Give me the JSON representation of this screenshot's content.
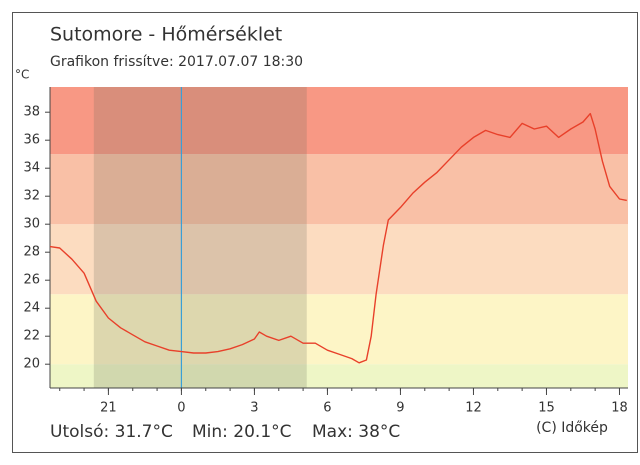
{
  "chart_data": {
    "type": "line",
    "title": "Sutomore - Hőmérséklet",
    "subtitle": "Grafikon frissítve: 2017.07.07 18:30",
    "y_unit": "°C",
    "stats": [
      "Utolsó: 31.7°C",
      "Min: 20.1°C",
      "Max: 38°C"
    ],
    "credit": "(C) Időkép",
    "color": "#e8402a",
    "x": [
      -5.4,
      -5,
      -4.5,
      -4,
      -3.5,
      -3,
      -2.5,
      -2,
      -1.5,
      -1,
      -0.5,
      0,
      0.5,
      1,
      1.5,
      2,
      2.5,
      3,
      3.2,
      3.5,
      4,
      4.5,
      5,
      5.5,
      6,
      6.5,
      7,
      7.3,
      7.6,
      7.8,
      8,
      8.3,
      8.5,
      9,
      9.5,
      10,
      10.5,
      11,
      11.5,
      12,
      12.5,
      13,
      13.5,
      14,
      14.5,
      15,
      15.5,
      16,
      16.5,
      16.8,
      17,
      17.3,
      17.6,
      18,
      18.3
    ],
    "values": [
      28.4,
      28.3,
      27.5,
      26.5,
      24.5,
      23.3,
      22.6,
      22.1,
      21.6,
      21.3,
      21.0,
      20.9,
      20.8,
      20.8,
      20.9,
      21.1,
      21.4,
      21.8,
      22.3,
      22.0,
      21.7,
      22.0,
      21.5,
      21.5,
      21.0,
      20.7,
      20.4,
      20.1,
      20.3,
      22.0,
      25.0,
      28.5,
      30.3,
      31.2,
      32.2,
      33.0,
      33.7,
      34.6,
      35.5,
      36.2,
      36.7,
      36.4,
      36.2,
      37.2,
      36.8,
      37.0,
      36.2,
      36.8,
      37.3,
      37.9,
      36.8,
      34.5,
      32.7,
      31.8,
      31.7
    ],
    "xlim": [
      -5.4,
      18.35
    ],
    "xticks": [
      {
        "value": -3,
        "label": "21"
      },
      0,
      3,
      6,
      9,
      12,
      15,
      18
    ],
    "ylim": [
      18.3,
      39.8
    ],
    "yticks": [
      20,
      22,
      24,
      26,
      28,
      30,
      32,
      34,
      36,
      38
    ],
    "bands": [
      {
        "from": 18.3,
        "to": 20,
        "color": "#eef6c6"
      },
      {
        "from": 20,
        "to": 25,
        "color": "#fdf5c6"
      },
      {
        "from": 25,
        "to": 30,
        "color": "#fcdcc0"
      },
      {
        "from": 30,
        "to": 35,
        "color": "#f9c0a6"
      },
      {
        "from": 35,
        "to": 39.8,
        "color": "#f89884"
      }
    ],
    "night": [
      -3.6,
      5.15
    ],
    "night_color": "rgba(110,110,90,0.22)",
    "now_line": 0,
    "now_line_color": "#3a9fd6"
  }
}
